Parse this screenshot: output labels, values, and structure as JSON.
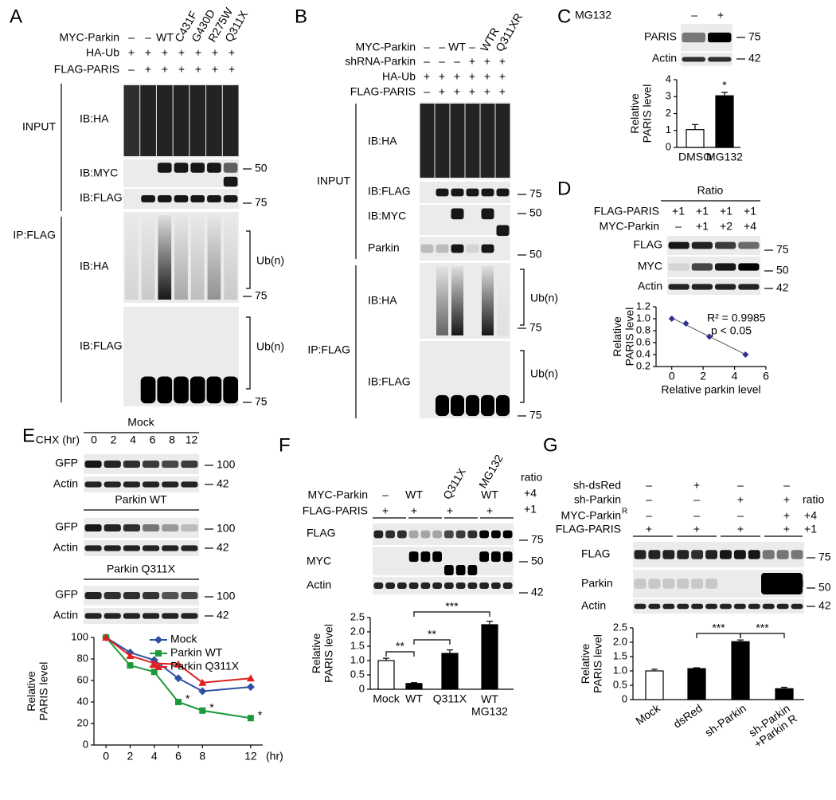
{
  "panel_labels": [
    "A",
    "B",
    "C",
    "D",
    "E",
    "F",
    "G"
  ],
  "panel_a": {
    "rows": [
      {
        "label": "MYC-Parkin",
        "lanes": [
          "–",
          "–",
          "WT",
          "C431F",
          "G430D",
          "R275W",
          "Q311X"
        ]
      },
      {
        "label": "HA-Ub",
        "lanes": [
          "+",
          "+",
          "+",
          "+",
          "+",
          "+",
          "+"
        ]
      },
      {
        "label": "FLAG-PARIS",
        "lanes": [
          "–",
          "+",
          "+",
          "+",
          "+",
          "+",
          "+"
        ]
      }
    ],
    "sections": [
      "INPUT",
      "IP:FLAG"
    ],
    "blots": [
      "IB:HA",
      "IB:MYC",
      "IB:FLAG",
      "IB:HA",
      "IB:FLAG"
    ],
    "markers": [
      50,
      75,
      75,
      75
    ],
    "ub": [
      "Ub(n)",
      "Ub(n)"
    ]
  },
  "panel_b": {
    "rows": [
      {
        "label": "MYC-Parkin",
        "lanes": [
          "–",
          "–",
          "WT",
          "–",
          "WTR",
          "Q311XR"
        ]
      },
      {
        "label": "shRNA-Parkin",
        "lanes": [
          "–",
          "–",
          "–",
          "+",
          "+",
          "+"
        ]
      },
      {
        "label": "HA-Ub",
        "lanes": [
          "+",
          "+",
          "+",
          "+",
          "+",
          "+"
        ]
      },
      {
        "label": "FLAG-PARIS",
        "lanes": [
          "–",
          "+",
          "+",
          "+",
          "+",
          "+"
        ]
      }
    ],
    "sections": [
      "INPUT",
      "IP:FLAG"
    ],
    "blots": [
      "IB:HA",
      "IB:FLAG",
      "IB:MYC",
      "Parkin",
      "IB:HA",
      "IB:FLAG"
    ],
    "markers": [
      75,
      50,
      50,
      75,
      75
    ],
    "ub": [
      "Ub(n)",
      "Ub(n)"
    ]
  },
  "panel_c": {
    "rows": [
      {
        "label": "MG132",
        "lanes": [
          "–",
          "+"
        ]
      }
    ],
    "blots": [
      "PARIS",
      "Actin"
    ],
    "markers": [
      75,
      42
    ]
  },
  "panel_d": {
    "header": "Ratio",
    "rows": [
      {
        "label": "FLAG-PARIS",
        "lanes": [
          "+1",
          "+1",
          "+1",
          "+1"
        ]
      },
      {
        "label": "MYC-Parkin",
        "lanes": [
          "–",
          "+1",
          "+2",
          "+4"
        ]
      }
    ],
    "blots": [
      "FLAG",
      "MYC",
      "Actin"
    ],
    "markers": [
      75,
      50,
      42
    ]
  },
  "panel_e": {
    "row_label": "CHX (hr)",
    "times": [
      0,
      2,
      4,
      6,
      8,
      12
    ],
    "groups": [
      {
        "title": "Mock",
        "blots": [
          "GFP",
          "Actin"
        ],
        "markers": [
          100,
          42
        ]
      },
      {
        "title": "Parkin WT",
        "blots": [
          "GFP",
          "Actin"
        ],
        "markers": [
          100,
          42
        ]
      },
      {
        "title": "Parkin Q311X",
        "blots": [
          "GFP",
          "Actin"
        ],
        "markers": [
          100,
          42
        ]
      }
    ]
  },
  "panel_f": {
    "treatment": "MG132",
    "rows": [
      {
        "label": "MYC-Parkin",
        "lanes": [
          "–",
          "WT",
          "Q311X",
          "WT"
        ]
      },
      {
        "label": "FLAG-PARIS",
        "lanes": [
          "+",
          "+",
          "+",
          "+"
        ]
      }
    ],
    "ratio": {
      "label": "ratio",
      "values": [
        "+4",
        "+1"
      ]
    },
    "blots": [
      "FLAG",
      "MYC",
      "Actin"
    ],
    "markers": [
      75,
      50,
      42
    ]
  },
  "panel_g": {
    "rows": [
      {
        "label": "sh-dsRed",
        "lanes": [
          "–",
          "+",
          "–",
          "–"
        ]
      },
      {
        "label": "sh-Parkin",
        "lanes": [
          "–",
          "–",
          "+",
          "+"
        ]
      },
      {
        "label": "MYC-Parkin",
        "sup": "R",
        "lanes": [
          "–",
          "–",
          "–",
          "+"
        ]
      },
      {
        "label": "FLAG-PARIS",
        "lanes": [
          "+",
          "+",
          "+",
          "+"
        ]
      }
    ],
    "ratio": {
      "label": "ratio",
      "values": [
        "+4",
        "+1"
      ]
    },
    "blots": [
      "FLAG",
      "Parkin",
      "Actin"
    ],
    "markers": [
      75,
      50,
      42
    ]
  },
  "chart_data": [
    {
      "type": "bar",
      "ylabel": "Relative\nPARIS level",
      "categories": [
        "DMSO",
        "MG132"
      ],
      "values": [
        1.05,
        3.05
      ],
      "errors": [
        0.3,
        0.2
      ],
      "colors": [
        "#ffffff",
        "#000000"
      ],
      "ylim": [
        0,
        4
      ],
      "yticks": [
        0,
        1,
        2,
        3,
        4
      ],
      "marks": [
        {
          "index": 1,
          "label": "*"
        }
      ]
    },
    {
      "type": "scatter",
      "xlabel": "Relative parkin level",
      "ylabel": "Relative\nPARIS level",
      "x": [
        0,
        0.9,
        2.4,
        4.7
      ],
      "values": [
        1.0,
        0.92,
        0.7,
        0.4
      ],
      "color": "#2e3192",
      "xlim": [
        -1,
        6
      ],
      "xticks": [
        0,
        2,
        4,
        6
      ],
      "ylim": [
        0.2,
        1.2
      ],
      "yticks": [
        0.2,
        0.4,
        0.6,
        0.8,
        {
          "value": 1,
          "label": "1.0"
        },
        1.2
      ],
      "trendline": true,
      "annotations": [
        "R² = 0.9985",
        "p < 0.05"
      ]
    },
    {
      "type": "line",
      "xlabel": "(hr)",
      "ylabel": "Relative\nPARIS level",
      "x": [
        0,
        2,
        4,
        6,
        8,
        12
      ],
      "series": [
        {
          "name": "Mock",
          "color": "#2e4fa3",
          "marker": "diamond",
          "values": [
            100,
            86,
            79,
            62,
            50,
            54
          ]
        },
        {
          "name": "Parkin WT",
          "color": "#1a9a3a",
          "marker": "square",
          "values": [
            100,
            74,
            68,
            40,
            32,
            25
          ]
        },
        {
          "name": "Parkin Q311X",
          "color": "#e02020",
          "marker": "triangle",
          "values": [
            100,
            83,
            76,
            75,
            58,
            62
          ]
        }
      ],
      "xlim": [
        -1,
        13
      ],
      "xticks": [
        0,
        2,
        4,
        6,
        8,
        12
      ],
      "ylim": [
        0,
        100
      ],
      "yticks": [
        0,
        20,
        40,
        60,
        80,
        100
      ],
      "marks": [
        {
          "series": 1,
          "index": 3,
          "label": "*"
        },
        {
          "series": 1,
          "index": 4,
          "label": "*"
        },
        {
          "series": 1,
          "index": 5,
          "label": "*"
        }
      ]
    },
    {
      "type": "bar",
      "ylabel": "Relative\nPARIS level",
      "categories": [
        "Mock",
        "WT",
        "Q311X",
        "WT\nMG132"
      ],
      "values": [
        1.0,
        0.2,
        1.25,
        2.25
      ],
      "errors": [
        0.08,
        0.03,
        0.12,
        0.12
      ],
      "colors": [
        "#ffffff",
        "#000000",
        "#000000",
        "#000000"
      ],
      "ylim": [
        0,
        2.5
      ],
      "yticks": [
        0,
        0.5,
        {
          "value": 1,
          "label": "1.0"
        },
        1.5,
        {
          "value": 2,
          "label": "2.0"
        },
        2.5
      ],
      "significance": [
        {
          "pair": [
            0,
            1
          ],
          "label": "**"
        },
        {
          "pair": [
            1,
            2
          ],
          "label": "**"
        },
        {
          "pair": [
            1,
            3
          ],
          "label": "***"
        }
      ]
    },
    {
      "type": "bar",
      "ylabel": "Relative\nPARIS level",
      "categories": [
        "Mock",
        "dsRed",
        "sh-Parkin",
        "sh-Parkin\n+Parkin R"
      ],
      "values": [
        1.0,
        1.08,
        2.02,
        0.38
      ],
      "errors": [
        0.06,
        0.03,
        0.06,
        0.05
      ],
      "colors": [
        "#ffffff",
        "#000000",
        "#000000",
        "#000000"
      ],
      "ylim": [
        0,
        2.5
      ],
      "yticks": [
        0,
        0.5,
        {
          "value": 1,
          "label": "1.0"
        },
        1.5,
        {
          "value": 2,
          "label": "2.0"
        },
        2.5
      ],
      "significance": [
        {
          "pair": [
            1,
            2
          ],
          "label": "***"
        },
        {
          "pair": [
            2,
            3
          ],
          "label": "***"
        }
      ]
    }
  ]
}
